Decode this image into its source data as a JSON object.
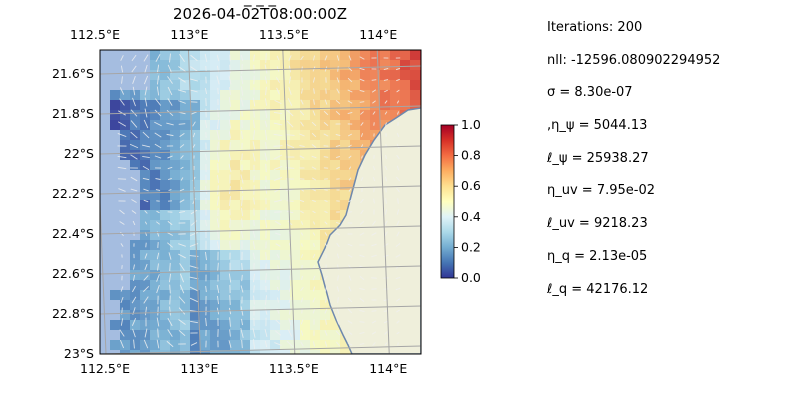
{
  "chart_data": {
    "type": "heatmap",
    "title": "2026-04-02T08:00:00Z",
    "title_clipped": "_ _ _",
    "x_ticks_bottom": [
      "112.5°E",
      "113°E",
      "113.5°E",
      "114°E"
    ],
    "x_ticks_top": [
      "112.5°E",
      "113°E",
      "113.5°E",
      "114°E"
    ],
    "x_tick_values": [
      112.5,
      113.0,
      113.5,
      114.0
    ],
    "y_ticks": [
      "21.6°S",
      "21.8°S",
      "22°S",
      "22.2°S",
      "22.4°S",
      "22.6°S",
      "22.8°S",
      "23°S"
    ],
    "y_tick_values": [
      -21.6,
      -21.8,
      -22.0,
      -22.2,
      -22.4,
      -22.6,
      -22.8,
      -23.0
    ],
    "xlim": [
      112.5,
      114.2
    ],
    "ylim": [
      -23.0,
      -21.48
    ],
    "grid": true,
    "overlay": "velocity-vectors",
    "colorbar": {
      "range": [
        0.0,
        1.0
      ],
      "ticks": [
        "0.0",
        "0.2",
        "0.4",
        "0.6",
        "0.8",
        "1.0"
      ],
      "colormap": "RdYlBu_r"
    },
    "colors": {
      "land": "#efefdb",
      "ocean_mask": "#a5bde0",
      "coast": "#6e88ad"
    }
  },
  "parameters": [
    "Iterations: 200",
    "nll: -12596.080902294952",
    "σ = 8.30e-07",
    ",η_ψ = 5044.13",
    "ℓ_ψ = 25938.27",
    "η_uv = 7.95e-02",
    "ℓ_uv = 9218.23",
    "η_q = 2.13e-05",
    "ℓ_q = 42176.12"
  ]
}
